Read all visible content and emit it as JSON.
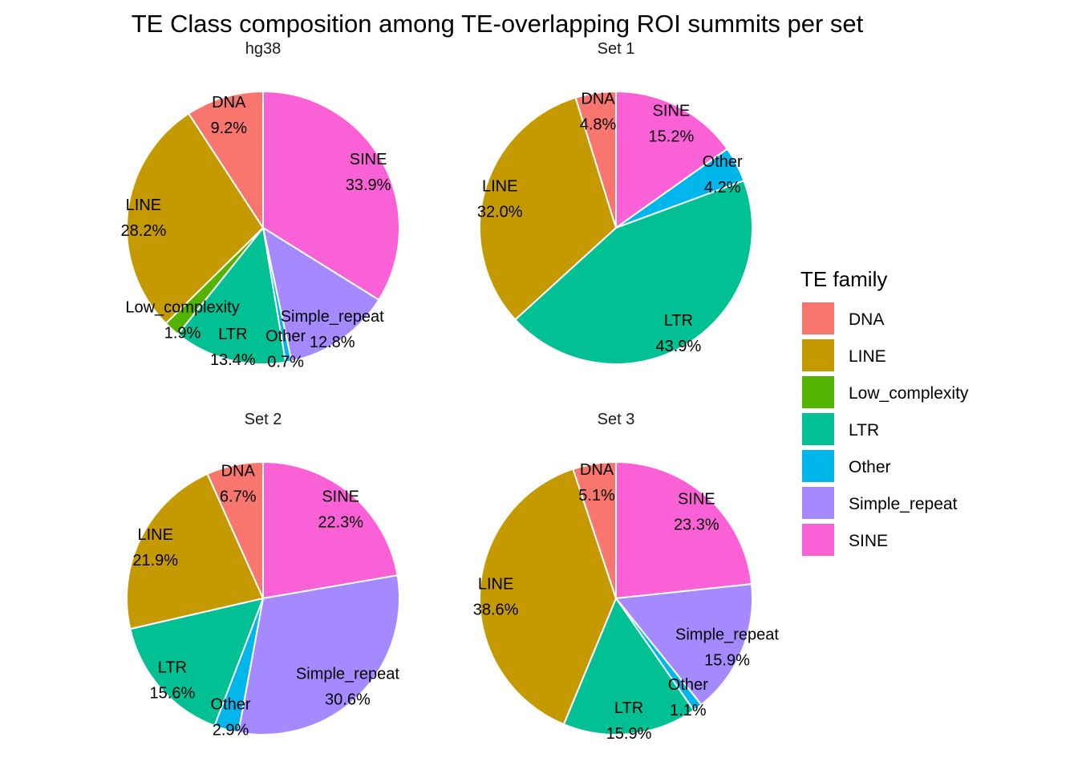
{
  "chart_data": {
    "type": "pie",
    "title": "TE Class composition among TE-overlapping ROI summits per set",
    "legend": {
      "title": "TE family",
      "placement": "right",
      "entries": [
        {
          "name": "DNA",
          "color": "#F8766D"
        },
        {
          "name": "LINE",
          "color": "#C49A00"
        },
        {
          "name": "Low_complexity",
          "color": "#53B400"
        },
        {
          "name": "LTR",
          "color": "#00C094"
        },
        {
          "name": "Other",
          "color": "#00B6EB"
        },
        {
          "name": "Simple_repeat",
          "color": "#A58AFF"
        },
        {
          "name": "SINE",
          "color": "#FB61D7"
        }
      ]
    },
    "panels": [
      {
        "name": "hg38",
        "slices": [
          {
            "category": "DNA",
            "value": 9.2,
            "label": "9.2%"
          },
          {
            "category": "LINE",
            "value": 28.2,
            "label": "28.2%"
          },
          {
            "category": "Low_complexity",
            "value": 1.9,
            "label": "1.9%"
          },
          {
            "category": "LTR",
            "value": 13.4,
            "label": "13.4%"
          },
          {
            "category": "Other",
            "value": 0.7,
            "label": "0.7%"
          },
          {
            "category": "Simple_repeat",
            "value": 12.8,
            "label": "12.8%"
          },
          {
            "category": "SINE",
            "value": 33.9,
            "label": "33.9%"
          }
        ]
      },
      {
        "name": "Set  1",
        "slices": [
          {
            "category": "DNA",
            "value": 4.8,
            "label": "4.8%"
          },
          {
            "category": "LINE",
            "value": 32.0,
            "label": "32.0%"
          },
          {
            "category": "LTR",
            "value": 43.9,
            "label": "43.9%"
          },
          {
            "category": "Other",
            "value": 4.2,
            "label": "4.2%"
          },
          {
            "category": "SINE",
            "value": 15.2,
            "label": "15.2%"
          }
        ]
      },
      {
        "name": "Set  2",
        "slices": [
          {
            "category": "DNA",
            "value": 6.7,
            "label": "6.7%"
          },
          {
            "category": "LINE",
            "value": 21.9,
            "label": "21.9%"
          },
          {
            "category": "LTR",
            "value": 15.6,
            "label": "15.6%"
          },
          {
            "category": "Other",
            "value": 2.9,
            "label": "2.9%"
          },
          {
            "category": "Simple_repeat",
            "value": 30.6,
            "label": "30.6%"
          },
          {
            "category": "SINE",
            "value": 22.3,
            "label": "22.3%"
          }
        ]
      },
      {
        "name": "Set  3",
        "slices": [
          {
            "category": "DNA",
            "value": 5.1,
            "label": "5.1%"
          },
          {
            "category": "LINE",
            "value": 38.6,
            "label": "38.6%"
          },
          {
            "category": "LTR",
            "value": 15.9,
            "label": "15.9%"
          },
          {
            "category": "Other",
            "value": 1.1,
            "label": "1.1%"
          },
          {
            "category": "Simple_repeat",
            "value": 15.9,
            "label": "15.9%"
          },
          {
            "category": "SINE",
            "value": 23.3,
            "label": "23.3%"
          }
        ]
      }
    ]
  }
}
